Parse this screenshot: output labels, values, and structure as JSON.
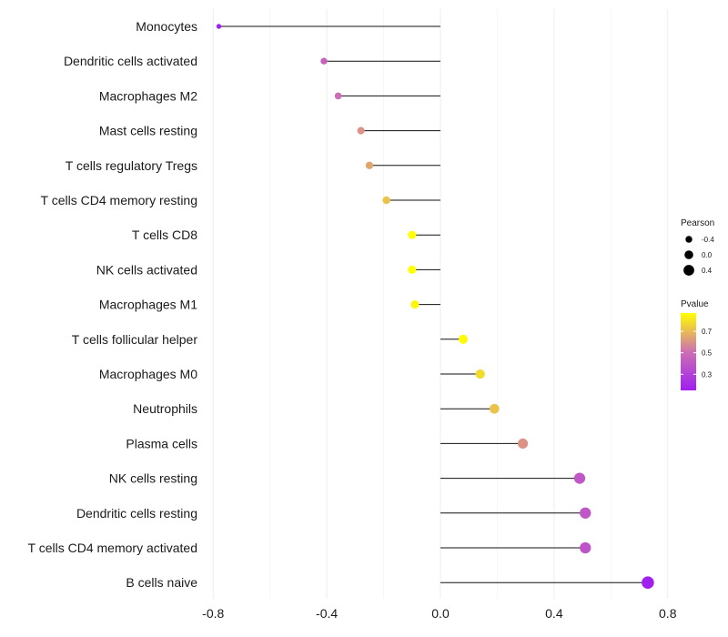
{
  "chart_data": {
    "type": "lollipop",
    "xlabel": "",
    "ylabel": "",
    "xlim": [
      -0.82,
      0.82
    ],
    "xticks": [
      -0.8,
      -0.4,
      0.0,
      0.4,
      0.8
    ],
    "xtick_labels": [
      "-0.8",
      "-0.4",
      "0.0",
      "0.4",
      "0.8"
    ],
    "grid": "vertical",
    "points": [
      {
        "category": "Monocytes",
        "value": -0.78,
        "pvalue": 0.1
      },
      {
        "category": "Dendritic cells activated",
        "value": -0.41,
        "pvalue": 0.45
      },
      {
        "category": "Macrophages M2",
        "value": -0.36,
        "pvalue": 0.5
      },
      {
        "category": "Mast cells resting",
        "value": -0.28,
        "pvalue": 0.6
      },
      {
        "category": "T cells regulatory  Tregs ",
        "value": -0.25,
        "pvalue": 0.65
      },
      {
        "category": "T cells CD4 memory resting",
        "value": -0.19,
        "pvalue": 0.72
      },
      {
        "category": "T cells CD8",
        "value": -0.1,
        "pvalue": 0.88
      },
      {
        "category": "NK cells activated",
        "value": -0.1,
        "pvalue": 0.87
      },
      {
        "category": "Macrophages M1",
        "value": -0.09,
        "pvalue": 0.85
      },
      {
        "category": "T cells follicular helper",
        "value": 0.08,
        "pvalue": 0.86
      },
      {
        "category": "Macrophages M0",
        "value": 0.14,
        "pvalue": 0.78
      },
      {
        "category": "Neutrophils",
        "value": 0.19,
        "pvalue": 0.72
      },
      {
        "category": "Plasma cells",
        "value": 0.29,
        "pvalue": 0.6
      },
      {
        "category": "NK cells resting",
        "value": 0.49,
        "pvalue": 0.4
      },
      {
        "category": "Dendritic cells resting",
        "value": 0.51,
        "pvalue": 0.4
      },
      {
        "category": "T cells CD4 memory activated",
        "value": 0.51,
        "pvalue": 0.38
      },
      {
        "category": "B cells naive",
        "value": 0.73,
        "pvalue": 0.15
      }
    ],
    "legend_size": {
      "title": "Pearson",
      "entries": [
        {
          "label": "-0.4",
          "value": -0.4
        },
        {
          "label": "0.0",
          "value": 0.0
        },
        {
          "label": "0.4",
          "value": 0.4
        }
      ]
    },
    "legend_color": {
      "title": "Pvalue",
      "low_color": "#a020f0",
      "mid_color": "#cd6fb3",
      "high_color": "#ffff00",
      "range": [
        0.15,
        0.87
      ],
      "ticks": [
        {
          "label": "0.7",
          "value": 0.7
        },
        {
          "label": "0.5",
          "value": 0.5
        },
        {
          "label": "0.3",
          "value": 0.3
        }
      ]
    }
  }
}
